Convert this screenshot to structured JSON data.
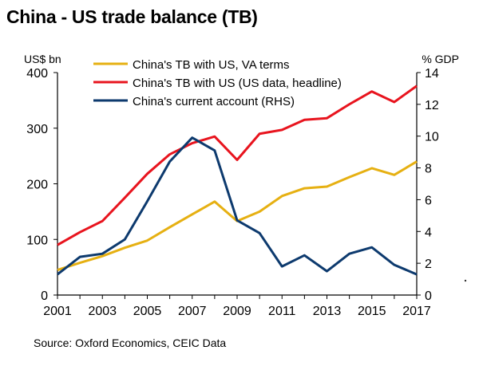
{
  "title": "China - US trade balance (TB)",
  "source": "Source: Oxford Economics, CEIC Data",
  "chart_data": {
    "type": "line",
    "title": "China - US trade balance (TB)",
    "ylabel_left": "US$ bn",
    "ylabel_right": "% GDP",
    "ylim_left": [
      0,
      400
    ],
    "ylim_right": [
      0,
      14
    ],
    "yticks_left": [
      "0",
      "100",
      "200",
      "300",
      "400"
    ],
    "yticks_right": [
      "0",
      "2",
      "4",
      "6",
      "8",
      "10",
      "12",
      "14"
    ],
    "xtick_labels": [
      "2001",
      "2003",
      "2005",
      "2007",
      "2009",
      "2011",
      "2013",
      "2015",
      "2017"
    ],
    "x": [
      2001,
      2002,
      2003,
      2004,
      2005,
      2006,
      2007,
      2008,
      2009,
      2010,
      2011,
      2012,
      2013,
      2014,
      2015,
      2016,
      2017
    ],
    "grid": false,
    "legend_position": "top-left",
    "series": [
      {
        "name": "China's TB with US, VA terms",
        "axis": "left",
        "color": "#e6b012",
        "values": [
          45,
          58,
          70,
          85,
          98,
          122,
          145,
          168,
          133,
          150,
          178,
          192,
          195,
          212,
          228,
          216,
          240
        ]
      },
      {
        "name": "China's TB with US (US data, headline)",
        "axis": "left",
        "color": "#e8141e",
        "values": [
          90,
          113,
          133,
          175,
          218,
          253,
          273,
          285,
          243,
          290,
          297,
          315,
          318,
          343,
          366,
          347,
          376
        ]
      },
      {
        "name": "China's current account (RHS)",
        "axis": "right",
        "color": "#0d3a6e",
        "values": [
          1.3,
          2.4,
          2.6,
          3.5,
          5.9,
          8.4,
          9.9,
          9.1,
          4.7,
          3.9,
          1.8,
          2.5,
          1.5,
          2.6,
          3.0,
          1.9,
          1.3
        ]
      }
    ]
  }
}
